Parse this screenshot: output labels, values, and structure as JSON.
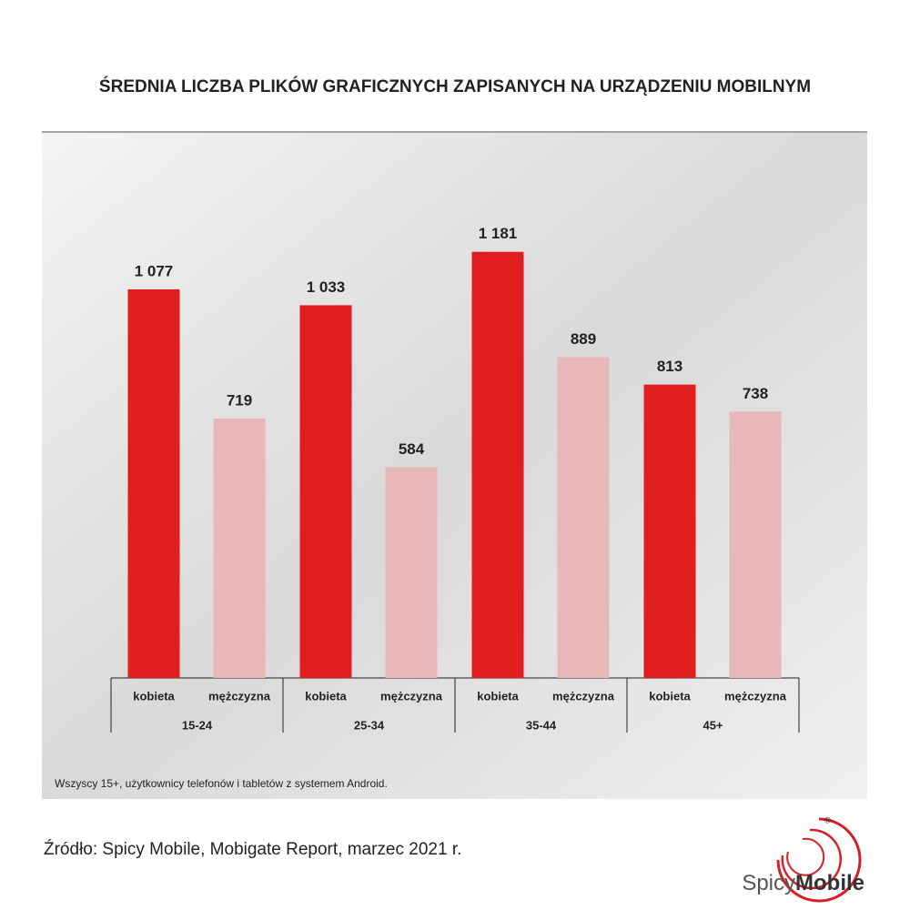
{
  "chart_data": {
    "type": "bar",
    "title": "ŚREDNIA LICZBA PLIKÓW GRAFICZNYCH ZAPISANYCH NA URZĄDZENIU MOBILNYM",
    "categories": [
      "15-24",
      "25-34",
      "35-44",
      "45+"
    ],
    "series": [
      {
        "name": "kobieta",
        "color": "#e01e1e",
        "values": [
          1077,
          1033,
          1181,
          813
        ],
        "value_labels": [
          "1 077",
          "1 033",
          "1 181",
          "813"
        ]
      },
      {
        "name": "mężczyzna",
        "color": "#e8b7b7",
        "values": [
          719,
          584,
          889,
          738
        ],
        "value_labels": [
          "719",
          "584",
          "889",
          "738"
        ]
      }
    ],
    "note": "Wszyscy 15+, użytkownicy telefonów i tabletów z systemem Android.",
    "source": "Źródło: Spicy Mobile, Mobigate Report, marzec 2021 r.",
    "brand": {
      "first": "Spicy",
      "second": "Mobile",
      "mark": "®"
    }
  }
}
